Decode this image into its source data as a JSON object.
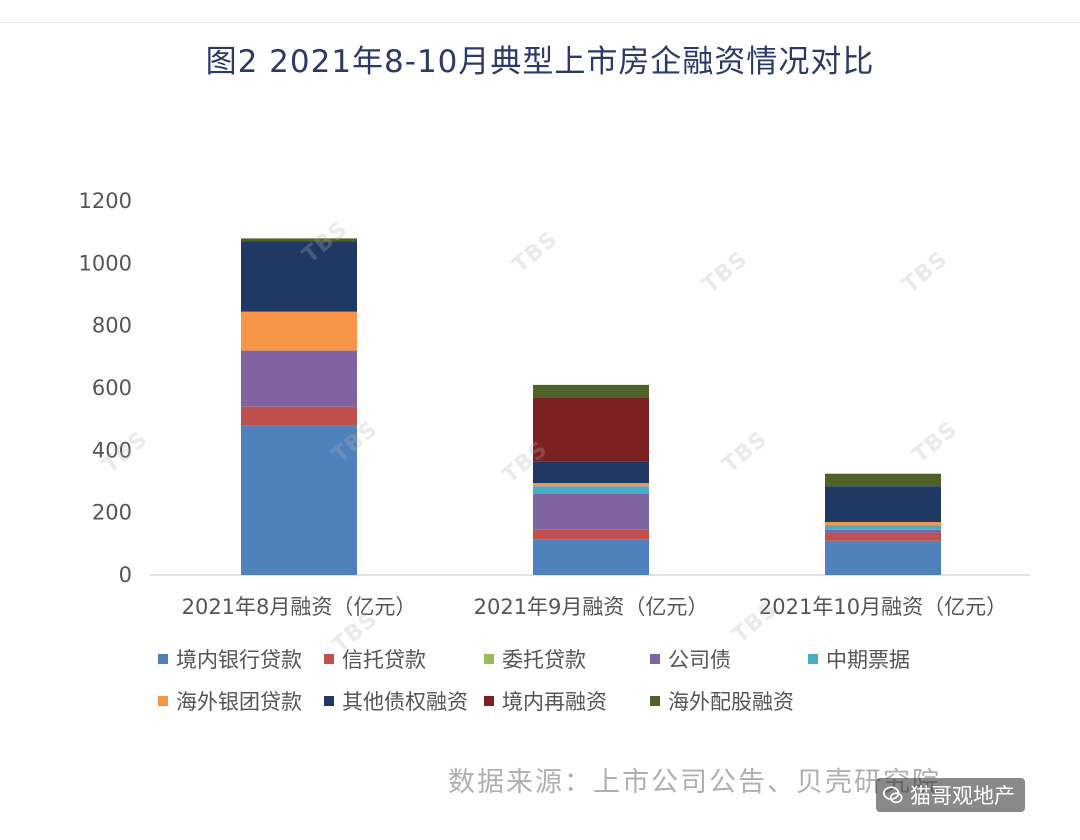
{
  "title": "图2 2021年8-10月典型上市房企融资情况对比",
  "chart_data": {
    "type": "bar",
    "stacked": true,
    "title": "图2 2021年8-10月典型上市房企融资情况对比",
    "categories": [
      "2021年8月融资（亿元）",
      "2021年9月融资（亿元）",
      "2021年10月融资（亿元）"
    ],
    "ylim": [
      0,
      1200
    ],
    "yticks": [
      0,
      200,
      400,
      600,
      800,
      1000,
      1200
    ],
    "grid": false,
    "legend_position": "bottom",
    "series": [
      {
        "name": "境内银行贷款",
        "color": "#4f81bd",
        "values": [
          480,
          115,
          110
        ]
      },
      {
        "name": "信托贷款",
        "color": "#c0504d",
        "values": [
          60,
          30,
          25
        ]
      },
      {
        "name": "委托贷款",
        "color": "#9bbb59",
        "values": [
          0,
          0,
          0
        ]
      },
      {
        "name": "公司债",
        "color": "#8064a2",
        "values": [
          180,
          115,
          10
        ]
      },
      {
        "name": "中期票据",
        "color": "#4bacc6",
        "values": [
          0,
          25,
          15
        ]
      },
      {
        "name": "海外银团贷款",
        "color": "#f79646",
        "values": [
          125,
          10,
          10
        ]
      },
      {
        "name": "其他债权融资",
        "color": "#1f3864",
        "values": [
          225,
          70,
          115
        ]
      },
      {
        "name": "境内再融资",
        "color": "#7b2121",
        "values": [
          0,
          205,
          0
        ]
      },
      {
        "name": "海外配股融资",
        "color": "#4f6228",
        "values": [
          10,
          40,
          40
        ]
      }
    ]
  },
  "source": "数据来源：上市公司公告、贝壳研究院",
  "wechat_label": "猫哥观地产"
}
